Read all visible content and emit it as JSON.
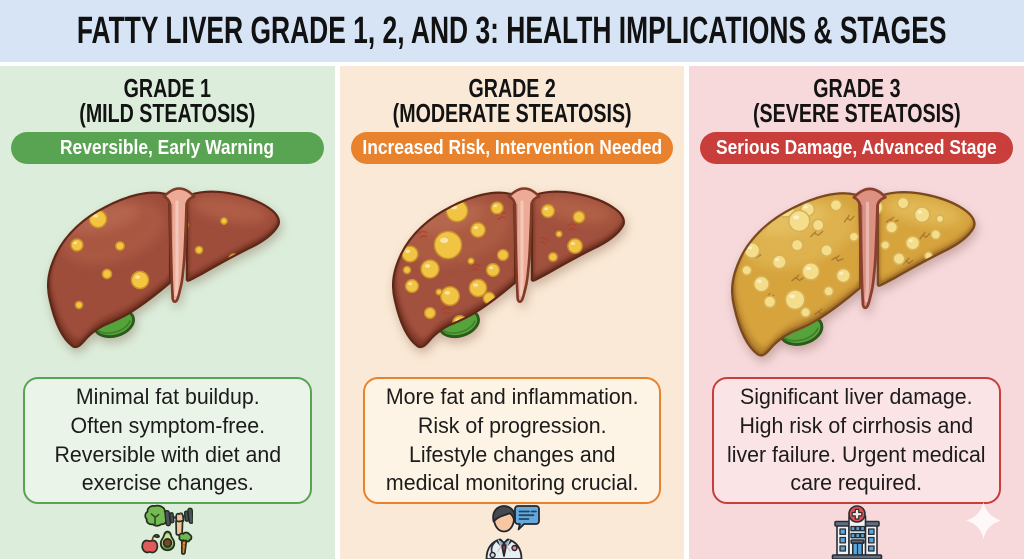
{
  "title": "FATTY LIVER GRADE 1, 2, AND 3: HEALTH IMPLICATIONS & STAGES",
  "header": {
    "background": "#d7e4f6",
    "text_color": "#111111"
  },
  "columns": [
    {
      "grade": "GRADE 1",
      "subtitle": "(MILD STEATOSIS)",
      "badge": "Reversible, Early Warning",
      "description_lines": [
        "Minimal fat buildup.",
        "Often symptom-free.",
        "Reversible with diet and",
        "exercise changes."
      ],
      "icon": "healthy-food-exercise-icon",
      "colors": {
        "background": "#dceedb",
        "accent": "#59a452",
        "box_background": "#ebf4e8"
      },
      "liver": {
        "severity": "mild",
        "body": "#9e4e3b",
        "outline": "#5e2818",
        "highlight": "#b26049",
        "gloss": "#c47a5e",
        "shadow": "#7c3727",
        "ligament": "#edab97",
        "ligament_outline": "#7e3b28",
        "gallbladder": "#55a33b",
        "gallbladder_outline": "#2c591c",
        "spot_fill": "#f3c540",
        "spot_outline": "#c88f2a",
        "spots": [
          [
            51,
            35,
            8.6
          ],
          [
            30,
            61,
            6
          ],
          [
            73,
            62,
            4.3
          ],
          [
            60,
            90,
            4.6
          ],
          [
            93,
            96,
            8.6
          ],
          [
            32,
            121,
            3.6
          ],
          [
            137,
            41,
            4
          ],
          [
            177,
            37,
            3.2
          ],
          [
            187,
            75,
            5
          ],
          [
            152,
            66,
            3.6
          ]
        ],
        "streak_style": "none",
        "streak_color": "",
        "streaks": []
      }
    },
    {
      "grade": "GRADE 2",
      "subtitle": "(MODERATE STEATOSIS)",
      "badge": "Increased Risk, Intervention Needed",
      "description_lines": [
        "More fat and inflammation.",
        "Risk of progression.",
        "Lifestyle changes and",
        "medical monitoring crucial."
      ],
      "icon": "doctor-consultation-icon",
      "colors": {
        "background": "#fae9d6",
        "accent": "#e8822d",
        "box_background": "#fdf4e6"
      },
      "liver": {
        "severity": "moderate",
        "body": "#a1513c",
        "outline": "#5e2818",
        "highlight": "#b4634a",
        "gloss": "#c47a5e",
        "shadow": "#7c3727",
        "ligament": "#edab97",
        "ligament_outline": "#7e3b28",
        "gallbladder": "#55a33b",
        "gallbladder_outline": "#2c591c",
        "spot_fill": "#f2c443",
        "spot_outline": "#c88f2a",
        "spots": [
          [
            65,
            27,
            10.7
          ],
          [
            56,
            61,
            13.6
          ],
          [
            18,
            70,
            7.9
          ],
          [
            38,
            85,
            9
          ],
          [
            86,
            46,
            7.2
          ],
          [
            101,
            86,
            6.4
          ],
          [
            86,
            104,
            8.6
          ],
          [
            20,
            102,
            6.4
          ],
          [
            58,
            112,
            9.3
          ],
          [
            97,
            114,
            5.7
          ],
          [
            38,
            129,
            5.4
          ],
          [
            68,
            139,
            7.2
          ],
          [
            111,
            71,
            5.4
          ],
          [
            79,
            77,
            2.9
          ],
          [
            47,
            108,
            2.9
          ],
          [
            15,
            86,
            3.6
          ],
          [
            105,
            24,
            6
          ],
          [
            156,
            27,
            6.4
          ],
          [
            187,
            33,
            5.7
          ],
          [
            167,
            50,
            2.9
          ],
          [
            183,
            62,
            7.2
          ],
          [
            161,
            73,
            4.3
          ],
          [
            190,
            84,
            5
          ],
          [
            208,
            71,
            3.6
          ]
        ],
        "streak_style": "double",
        "streak_color": "#b23a28",
        "streaks": [
          [
            104,
            32,
            10,
            -15
          ],
          [
            120,
            86,
            9,
            10
          ],
          [
            80,
            82,
            8,
            0
          ],
          [
            26,
            50,
            9,
            -10
          ],
          [
            50,
            126,
            9,
            -5
          ],
          [
            96,
            142,
            8,
            5
          ],
          [
            148,
            54,
            8,
            20
          ],
          [
            176,
            42,
            8,
            -5
          ],
          [
            192,
            90,
            8,
            15
          ],
          [
            166,
            84,
            7,
            0
          ]
        ]
      }
    },
    {
      "grade": "GRADE 3",
      "subtitle": "(SEVERE STEATOSIS)",
      "badge": "Serious Damage, Advanced Stage",
      "description_lines": [
        "Significant liver damage.",
        "High risk of cirrhosis and",
        "liver failure. Urgent medical",
        "care required."
      ],
      "icon": "hospital-icon",
      "colors": {
        "background": "#f7d9dc",
        "accent": "#c93d3a",
        "box_background": "#fae4e6"
      },
      "liver": {
        "severity": "severe",
        "body": "#d6a33e",
        "outline": "#7a4a1e",
        "highlight": "#e3bc5a",
        "gloss": "#edd27c",
        "shadow": "#b07c2c",
        "ligament": "#dd9181",
        "ligament_outline": "#8a4030",
        "gallbladder": "#55a33b",
        "gallbladder_outline": "#2c591c",
        "spot_fill": "#f4dd8b",
        "spot_outline": "#d8b055",
        "spots": [
          [
            27,
            39,
            6.9
          ],
          [
            52,
            22,
            9.2
          ],
          [
            73,
            24,
            6.5
          ],
          [
            65,
            35,
            10
          ],
          [
            20,
            63,
            7.3
          ],
          [
            29,
            95,
            7.3
          ],
          [
            15,
            82,
            4.6
          ],
          [
            46,
            74,
            6.5
          ],
          [
            63,
            58,
            5.5
          ],
          [
            76,
            83,
            8.2
          ],
          [
            61,
            110,
            9.2
          ],
          [
            37,
            112,
            5.5
          ],
          [
            83,
            39,
            5.5
          ],
          [
            91,
            63,
            5.5
          ],
          [
            93,
            102,
            4.6
          ],
          [
            71,
            122,
            4.6
          ],
          [
            107,
            87,
            6.5
          ],
          [
            11,
            54,
            4.6
          ],
          [
            65,
            12,
            5.5
          ],
          [
            34,
            14,
            4.9
          ],
          [
            100,
            20,
            5.4
          ],
          [
            138,
            22,
            6.5
          ],
          [
            164,
            18,
            5.5
          ],
          [
            182,
            29,
            7.3
          ],
          [
            153,
            41,
            5.5
          ],
          [
            173,
            56,
            6.5
          ],
          [
            195,
            48,
            4.6
          ],
          [
            160,
            71,
            5.5
          ],
          [
            188,
            68,
            3.6
          ],
          [
            147,
            58,
            4.1
          ],
          [
            199,
            33,
            3.6
          ],
          [
            117,
            50,
            4.3
          ],
          [
            121,
            108,
            4.6
          ],
          [
            88,
            136,
            4.3
          ]
        ],
        "streak_style": "crack",
        "streak_color": "#8f5e28",
        "streaks": [
          [
            38,
            28,
            13,
            10
          ],
          [
            76,
            50,
            12,
            -8
          ],
          [
            18,
            70,
            10,
            4
          ],
          [
            58,
            92,
            12,
            0
          ],
          [
            96,
            72,
            10,
            14
          ],
          [
            32,
            110,
            9,
            -5
          ],
          [
            80,
            124,
            10,
            5
          ],
          [
            108,
            36,
            10,
            -12
          ],
          [
            148,
            36,
            11,
            8
          ],
          [
            180,
            52,
            10,
            -10
          ],
          [
            164,
            76,
            9,
            0
          ],
          [
            198,
            78,
            8,
            12
          ]
        ]
      }
    }
  ],
  "watermark": "sparkle-icon"
}
